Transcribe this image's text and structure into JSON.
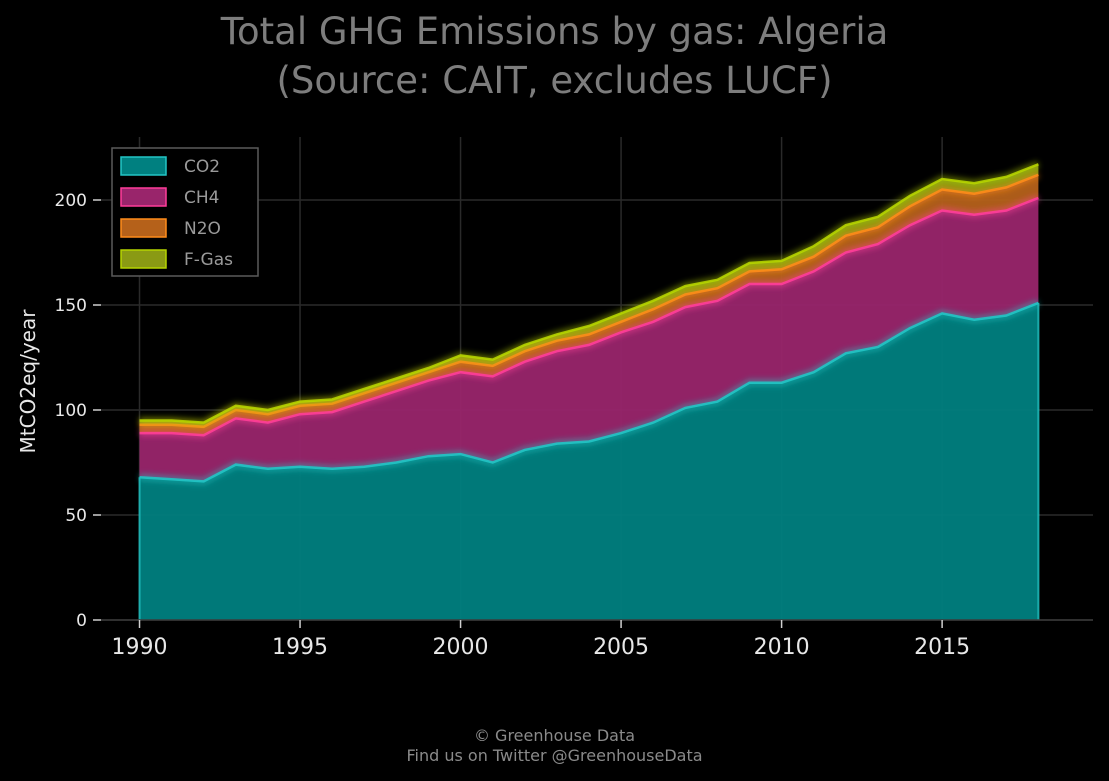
{
  "header": {
    "title_line1": "Total GHG Emissions by gas: Algeria",
    "title_line2": "(Source: CAIT, excludes LUCF)"
  },
  "footer": {
    "line1": "© Greenhouse Data",
    "line2": "Find us on Twitter @GreenhouseData"
  },
  "colors": {
    "background": "#000000",
    "co2": "#008080",
    "ch4": "#99256b",
    "n2o": "#b5611a",
    "fgas": "#8a9a14",
    "co2_line": "#22c5c5",
    "ch4_line": "#ff3d9a",
    "n2o_line": "#ff8c1a",
    "fgas_line": "#b6d400",
    "grid": "#2a2a2a",
    "text": "#e8e8e8"
  },
  "chart_data": {
    "type": "area",
    "stacked": true,
    "title": "Total GHG Emissions by gas: Algeria\n(Source: CAIT, excludes LUCF)",
    "xlabel": "",
    "ylabel": "MtCO2eq/year",
    "xlim": [
      1988.8,
      2019.7
    ],
    "ylim": [
      0,
      230
    ],
    "xticks": [
      1990,
      1995,
      2000,
      2005,
      2010,
      2015
    ],
    "yticks": [
      0,
      50,
      100,
      150,
      200
    ],
    "grid": true,
    "legend_position": "top-left",
    "x": [
      1990,
      1991,
      1992,
      1993,
      1994,
      1995,
      1996,
      1997,
      1998,
      1999,
      2000,
      2001,
      2002,
      2003,
      2004,
      2005,
      2006,
      2007,
      2008,
      2009,
      2010,
      2011,
      2012,
      2013,
      2014,
      2015,
      2016,
      2017,
      2018
    ],
    "series": [
      {
        "name": "CO2",
        "values": [
          68,
          67,
          66,
          74,
          72,
          73,
          72,
          73,
          75,
          78,
          79,
          75,
          81,
          84,
          85,
          89,
          94,
          101,
          104,
          113,
          113,
          118,
          127,
          130,
          139,
          146,
          143,
          145,
          151
        ]
      },
      {
        "name": "CH4",
        "values": [
          21,
          22,
          22,
          22,
          22,
          25,
          27,
          31,
          34,
          36,
          39,
          41,
          42,
          44,
          46,
          48,
          48,
          48,
          48,
          47,
          47,
          48,
          48,
          49,
          49,
          49,
          50,
          50,
          50
        ]
      },
      {
        "name": "N2O",
        "values": [
          4,
          4,
          4,
          4,
          4,
          4,
          4,
          4,
          4,
          4,
          5,
          5,
          5,
          5,
          5,
          5,
          6,
          6,
          6,
          6,
          7,
          7,
          8,
          8,
          9,
          10,
          10,
          11,
          11
        ]
      },
      {
        "name": "F-Gas",
        "values": [
          2,
          2,
          2,
          2,
          2,
          2,
          2,
          2,
          2,
          2,
          3,
          3,
          3,
          3,
          4,
          4,
          4,
          4,
          4,
          4,
          4,
          5,
          5,
          5,
          5,
          5,
          5,
          5,
          5
        ]
      }
    ]
  }
}
